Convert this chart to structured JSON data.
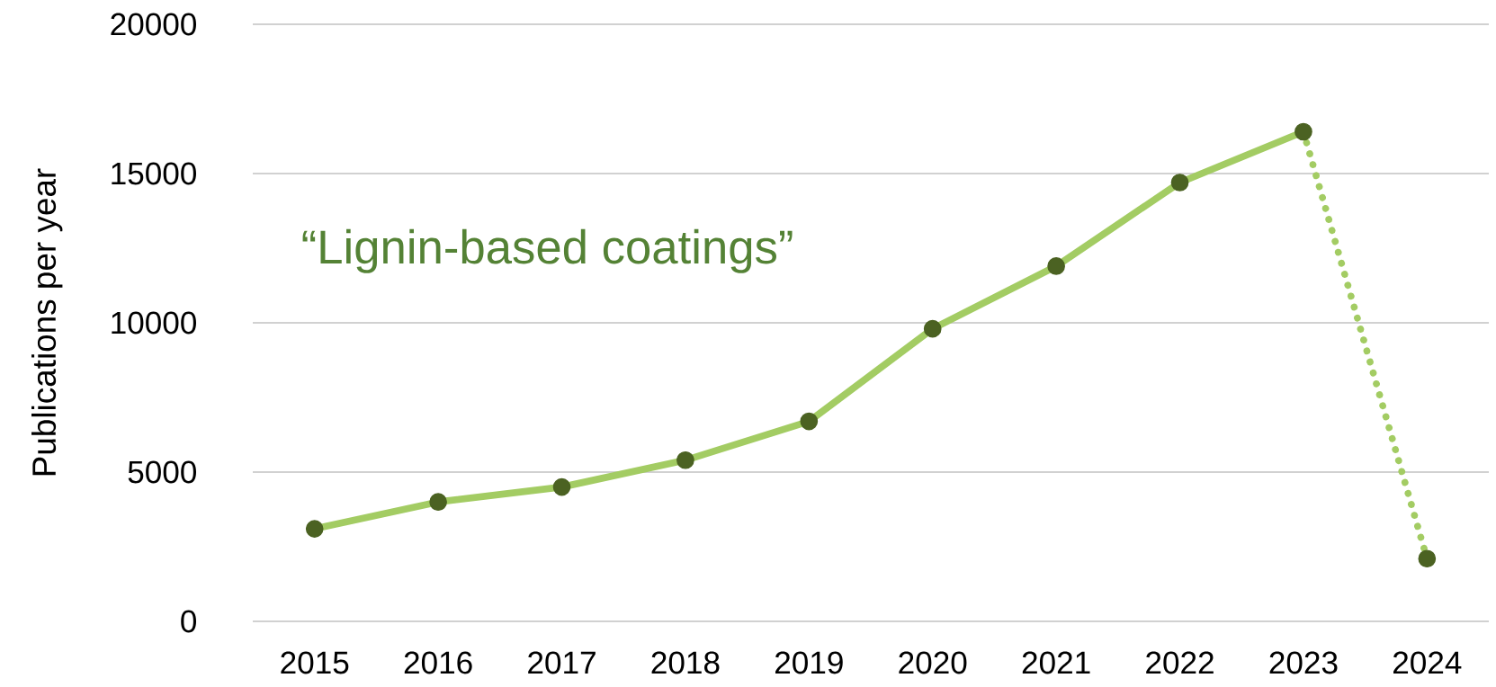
{
  "chart_data": {
    "type": "line",
    "ylabel": "Publications per year",
    "categories": [
      "2015",
      "2016",
      "2017",
      "2018",
      "2019",
      "2020",
      "2021",
      "2022",
      "2023",
      "2024"
    ],
    "series": [
      {
        "color": "#a3cc63",
        "line_style": "solid",
        "marker": "none",
        "values": [
          3100,
          4000,
          4500,
          5400,
          6700,
          9800,
          11900,
          14700,
          16400,
          null
        ]
      },
      {
        "color": "#a3cc63",
        "line_style": "dotted",
        "marker": "none",
        "values": [
          null,
          null,
          null,
          null,
          null,
          null,
          null,
          null,
          16400,
          2100
        ]
      },
      {
        "type": "scatter",
        "color": "#4b6222",
        "marker": "circle",
        "values": [
          3100,
          4000,
          4500,
          5400,
          6700,
          9800,
          11900,
          14700,
          16400,
          2100
        ]
      }
    ],
    "annotations": [
      "“Lignin-based coatings”"
    ],
    "ylim": [
      0,
      20000
    ],
    "yticks": [
      0,
      5000,
      10000,
      15000,
      20000
    ],
    "grid": "y"
  }
}
